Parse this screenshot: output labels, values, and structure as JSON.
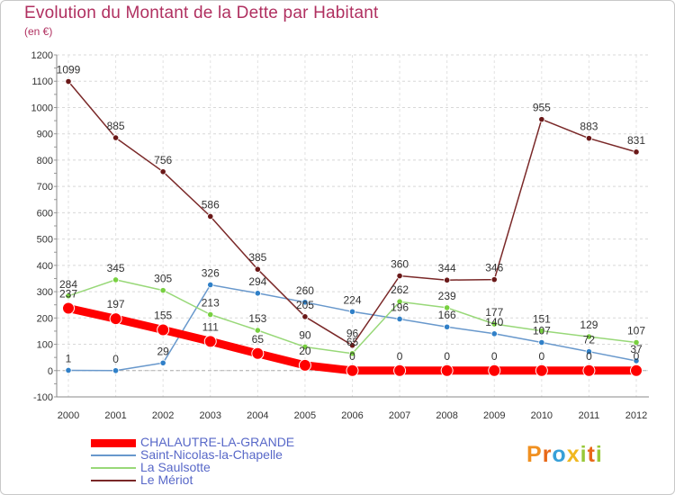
{
  "title": "Evolution du Montant de la Dette par Habitant",
  "unit_label": "(en €)",
  "logo": {
    "text": "Proxiti",
    "letters": [
      {
        "ch": "P",
        "color": "#f09020"
      },
      {
        "ch": "r",
        "color": "#e86818"
      },
      {
        "ch": "o",
        "color": "#38a0d8"
      },
      {
        "ch": "x",
        "color": "#f0b820"
      },
      {
        "ch": "i",
        "color": "#98c838"
      },
      {
        "ch": "t",
        "color": "#e86818"
      },
      {
        "ch": "i",
        "color": "#98c838"
      }
    ]
  },
  "chart_data": {
    "type": "line",
    "title": "Evolution du Montant de la Dette par Habitant",
    "ylabel": "(en €)",
    "xlabel": "",
    "x": [
      "2000",
      "2001",
      "2002",
      "2003",
      "2004",
      "2005",
      "2006",
      "2007",
      "2008",
      "2009",
      "2010",
      "2011",
      "2012"
    ],
    "ylim": [
      -100,
      1200
    ],
    "yticks": [
      -100,
      0,
      100,
      200,
      300,
      400,
      500,
      600,
      700,
      800,
      900,
      1000,
      1100,
      1200
    ],
    "grid": true,
    "legend_position": "bottom-left",
    "series": [
      {
        "name": "CHALAUTRE-LA-GRANDE",
        "color": "#ff0000",
        "marker_color": "#ff0000",
        "emphasis": true,
        "values": [
          237,
          197,
          155,
          111,
          65,
          20,
          0,
          0,
          0,
          0,
          0,
          0,
          0
        ],
        "labels": [
          "237",
          "197",
          "155",
          "111",
          "65",
          "20",
          "0",
          "0",
          "0",
          "0",
          "0",
          "0",
          "0"
        ]
      },
      {
        "name": "Saint-Nicolas-la-Chapelle",
        "color": "#6898cc",
        "marker_color": "#3080c8",
        "values": [
          1,
          0,
          29,
          326,
          294,
          260,
          224,
          196,
          166,
          140,
          107,
          72,
          37
        ],
        "labels": [
          "1",
          "0",
          "29",
          "326",
          "294",
          "260",
          "224",
          "196",
          "166",
          "140",
          "107",
          "72",
          "37"
        ]
      },
      {
        "name": "La Saulsotte",
        "color": "#98d878",
        "marker_color": "#78d040",
        "values": [
          284,
          345,
          305,
          213,
          153,
          90,
          65,
          262,
          239,
          177,
          151,
          129,
          107
        ],
        "labels": [
          "284",
          "345",
          "305",
          "213",
          "153",
          "90",
          "65",
          "262",
          "239",
          "177",
          "151",
          "129",
          "107"
        ]
      },
      {
        "name": "Le Mériot",
        "color": "#7a2828",
        "marker_color": "#6a1818",
        "values": [
          1099,
          885,
          756,
          586,
          385,
          205,
          96,
          360,
          344,
          346,
          955,
          883,
          831
        ],
        "labels": [
          "1099",
          "885",
          "756",
          "586",
          "385",
          "205",
          "96",
          "360",
          "344",
          "346",
          "955",
          "883",
          "831"
        ]
      }
    ]
  }
}
